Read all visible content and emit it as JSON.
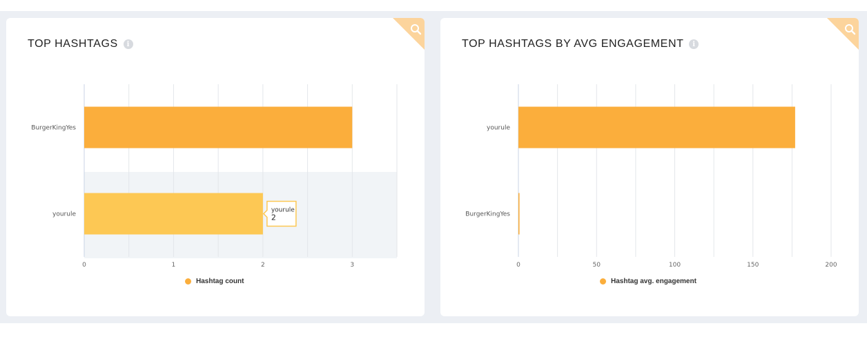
{
  "colors": {
    "bar": "#fbae3c",
    "bar_highlight": "#fdc854",
    "grid": "#e3e6ea",
    "corner": "#fcd49c"
  },
  "icons": {
    "info": "info-icon",
    "corner": "search-icon"
  },
  "chart_data": [
    {
      "type": "bar",
      "orientation": "horizontal",
      "title": "TOP HASHTAGS",
      "categories": [
        "BurgerKingYes",
        "yourule"
      ],
      "series": [
        {
          "name": "Hashtag count",
          "values": [
            3,
            2
          ]
        }
      ],
      "xlim": [
        0,
        3.5
      ],
      "xticks": [
        0,
        1,
        2,
        3
      ],
      "grid": true,
      "legend": "bottom-center",
      "hovered_category": "yourule",
      "tooltip": {
        "label": "yourule",
        "value": "2"
      }
    },
    {
      "type": "bar",
      "orientation": "horizontal",
      "title": "TOP HASHTAGS BY AVG ENGAGEMENT",
      "categories": [
        "yourule",
        "BurgerKingYes"
      ],
      "series": [
        {
          "name": "Hashtag avg. engagement",
          "values": [
            177,
            0.7
          ]
        }
      ],
      "xlim": [
        0,
        200
      ],
      "xticks": [
        0,
        50,
        100,
        150,
        200
      ],
      "grid": true,
      "legend": "bottom-center"
    }
  ]
}
